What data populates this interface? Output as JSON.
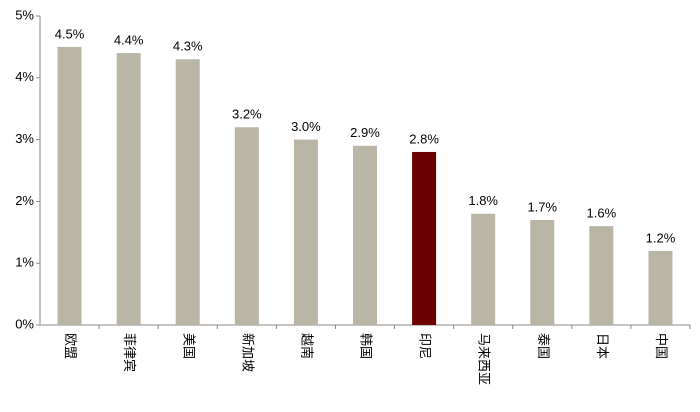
{
  "chart_data": {
    "type": "bar",
    "categories": [
      "欧盟",
      "菲律宾",
      "美国",
      "新加坡",
      "越南",
      "韩国",
      "印尼",
      "马来西亚",
      "泰国",
      "日本",
      "中国"
    ],
    "values": [
      4.5,
      4.4,
      4.3,
      3.2,
      3.0,
      2.9,
      2.8,
      1.8,
      1.7,
      1.6,
      1.2
    ],
    "value_labels": [
      "4.5%",
      "4.4%",
      "4.3%",
      "3.2%",
      "3.0%",
      "2.9%",
      "2.8%",
      "1.8%",
      "1.7%",
      "1.6%",
      "1.2%"
    ],
    "colors": [
      "#b9b6a6",
      "#b9b6a6",
      "#b9b6a6",
      "#b9b6a6",
      "#b9b6a6",
      "#b9b6a6",
      "#6b0000",
      "#b9b6a6",
      "#b9b6a6",
      "#b9b6a6",
      "#b9b6a6"
    ],
    "ylim": [
      0,
      5
    ],
    "yticks": [
      {
        "value": 0,
        "label": "0%"
      },
      {
        "value": 1,
        "label": "1%"
      },
      {
        "value": 2,
        "label": "2%"
      },
      {
        "value": 3,
        "label": "3%"
      },
      {
        "value": 4,
        "label": "4%"
      },
      {
        "value": 5,
        "label": "5%"
      }
    ],
    "grid": false
  }
}
